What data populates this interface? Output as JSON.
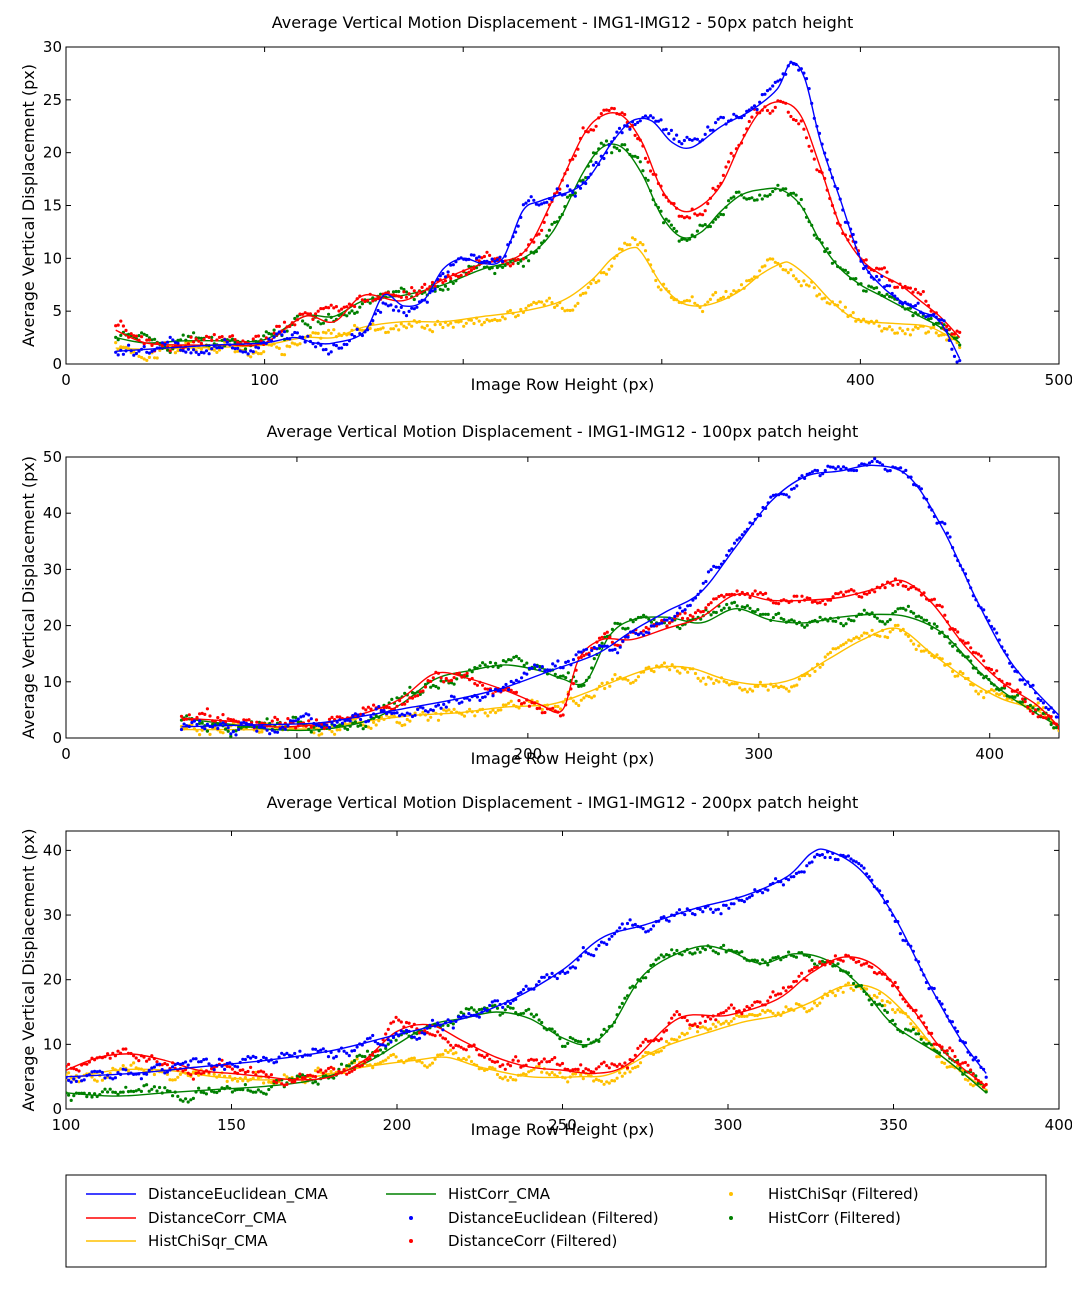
{
  "legend": {
    "placement": "bottom",
    "entries": [
      {
        "label": "DistanceEuclidean_CMA",
        "color": "#0000ff",
        "style": "line"
      },
      {
        "label": "DistanceCorr_CMA",
        "color": "#ff0000",
        "style": "line"
      },
      {
        "label": "HistChiSqr_CMA",
        "color": "#ffc000",
        "style": "line"
      },
      {
        "label": "HistCorr_CMA",
        "color": "#008000",
        "style": "line"
      },
      {
        "label": "DistanceEuclidean (Filtered)",
        "color": "#0000ff",
        "style": "dots"
      },
      {
        "label": "DistanceCorr (Filtered)",
        "color": "#ff0000",
        "style": "dots"
      },
      {
        "label": "HistChiSqr (Filtered)",
        "color": "#ffc000",
        "style": "dots"
      },
      {
        "label": "HistCorr (Filtered)",
        "color": "#008000",
        "style": "dots"
      }
    ]
  },
  "chart_data": [
    {
      "type": "line",
      "title": "Average Vertical Motion Displacement - IMG1-IMG12 - 50px patch height",
      "xlabel": "Image Row Height (px)",
      "ylabel": "Average Vertical Displacement (px)",
      "xlim": [
        0,
        500
      ],
      "ylim": [
        0,
        30
      ],
      "xticks": [
        0,
        100,
        200,
        300,
        400,
        500
      ],
      "yticks": [
        0,
        5,
        10,
        15,
        20,
        25,
        30
      ],
      "xticklabels": [
        "0",
        "100",
        "",
        "",
        "400",
        "500"
      ],
      "grid": false,
      "series": [
        {
          "key": "de",
          "color": "#0000ff",
          "x": [
            25,
            50,
            75,
            100,
            115,
            125,
            135,
            150,
            160,
            170,
            180,
            190,
            200,
            210,
            220,
            230,
            240,
            260,
            275,
            285,
            295,
            305,
            315,
            330,
            345,
            358,
            365,
            372,
            380,
            390,
            400,
            410,
            420,
            430,
            440,
            450
          ],
          "y": [
            1.2,
            1.5,
            1.8,
            2.0,
            2.5,
            2.0,
            2.0,
            3.0,
            6.5,
            5.5,
            6.0,
            9.0,
            10.0,
            9.5,
            10.0,
            14.5,
            15.5,
            17.0,
            21.0,
            23.0,
            23.0,
            21.0,
            20.5,
            22.5,
            24.0,
            26.0,
            28.5,
            27.0,
            21.0,
            15.5,
            10.0,
            7.5,
            6.0,
            5.0,
            4.0,
            0.5
          ]
        },
        {
          "key": "dc",
          "color": "#ff0000",
          "x": [
            25,
            40,
            60,
            80,
            100,
            120,
            135,
            150,
            170,
            190,
            210,
            230,
            245,
            260,
            270,
            280,
            290,
            300,
            310,
            320,
            330,
            340,
            350,
            360,
            370,
            380,
            390,
            400,
            410,
            420,
            430,
            440,
            450
          ],
          "y": [
            3.2,
            2.0,
            1.8,
            1.8,
            2.0,
            4.5,
            4.0,
            6.5,
            6.0,
            8.0,
            9.5,
            10.5,
            15.5,
            21.5,
            23.5,
            23.5,
            21.0,
            16.5,
            14.5,
            15.0,
            17.0,
            21.0,
            24.0,
            24.8,
            23.5,
            18.5,
            13.0,
            10.0,
            8.5,
            7.5,
            6.0,
            4.5,
            2.5
          ]
        },
        {
          "key": "hc",
          "color": "#008000",
          "x": [
            25,
            40,
            60,
            80,
            100,
            120,
            135,
            150,
            170,
            190,
            210,
            230,
            245,
            260,
            270,
            280,
            290,
            300,
            310,
            320,
            330,
            340,
            350,
            360,
            370,
            380,
            390,
            400,
            410,
            420,
            430,
            440,
            450
          ],
          "y": [
            2.5,
            2.0,
            2.2,
            2.2,
            2.3,
            4.5,
            4.5,
            6.0,
            6.5,
            7.5,
            9.0,
            10.0,
            12.5,
            18.0,
            20.5,
            20.5,
            18.0,
            14.0,
            12.0,
            12.5,
            14.5,
            16.0,
            16.5,
            16.5,
            15.0,
            11.5,
            9.0,
            7.5,
            6.5,
            5.5,
            4.5,
            3.5,
            2.0
          ]
        },
        {
          "key": "hs",
          "color": "#ffc000",
          "x": [
            25,
            40,
            60,
            80,
            100,
            120,
            135,
            150,
            170,
            190,
            210,
            230,
            250,
            265,
            275,
            285,
            290,
            300,
            310,
            320,
            330,
            340,
            350,
            360,
            365,
            375,
            385,
            395,
            405,
            420,
            435,
            450
          ],
          "y": [
            1.5,
            1.4,
            1.5,
            1.6,
            1.8,
            2.5,
            2.5,
            3.5,
            4.0,
            4.0,
            4.5,
            5.0,
            6.0,
            8.0,
            10.0,
            11.0,
            10.5,
            7.5,
            5.8,
            5.5,
            6.0,
            7.0,
            8.5,
            9.5,
            9.5,
            8.0,
            6.0,
            4.5,
            4.0,
            3.8,
            3.5,
            2.0
          ]
        }
      ]
    },
    {
      "type": "line",
      "title": "Average Vertical Motion Displacement - IMG1-IMG12 - 100px patch height",
      "xlabel": "Image Row Height (px)",
      "ylabel": "Average Vertical Displacement (px)",
      "xlim": [
        0,
        430
      ],
      "ylim": [
        0,
        50
      ],
      "xticks": [
        0,
        100,
        200,
        300,
        400
      ],
      "yticks": [
        0,
        10,
        20,
        30,
        40,
        50
      ],
      "xticklabels": [
        "0",
        "100",
        "200",
        "300",
        "400"
      ],
      "grid": false,
      "series": [
        {
          "key": "de",
          "color": "#0000ff",
          "x": [
            50,
            70,
            90,
            110,
            130,
            150,
            170,
            190,
            210,
            230,
            245,
            260,
            275,
            290,
            305,
            320,
            335,
            350,
            365,
            380,
            395,
            410,
            430
          ],
          "y": [
            2.0,
            2.2,
            2.4,
            2.7,
            4.0,
            5.5,
            7.0,
            9.0,
            12.0,
            15.0,
            19.0,
            22.5,
            26.0,
            34.0,
            42.0,
            46.5,
            47.5,
            48.5,
            46.5,
            37.0,
            24.0,
            13.0,
            4.0
          ]
        },
        {
          "key": "dc",
          "color": "#ff0000",
          "x": [
            50,
            70,
            90,
            110,
            130,
            145,
            160,
            175,
            190,
            205,
            215,
            222,
            232,
            245,
            260,
            275,
            290,
            305,
            320,
            335,
            350,
            362,
            375,
            390,
            405,
            420,
            430
          ],
          "y": [
            3.5,
            3.0,
            2.0,
            2.5,
            4.5,
            7.0,
            11.5,
            10.5,
            8.5,
            6.0,
            5.0,
            14.0,
            17.5,
            17.5,
            19.5,
            21.5,
            25.5,
            24.5,
            24.5,
            25.0,
            26.5,
            28.0,
            24.0,
            16.0,
            10.0,
            6.0,
            2.0
          ]
        },
        {
          "key": "hc",
          "color": "#008000",
          "x": [
            50,
            70,
            90,
            110,
            130,
            145,
            160,
            175,
            190,
            205,
            215,
            225,
            235,
            245,
            260,
            275,
            290,
            305,
            320,
            335,
            350,
            365,
            380,
            395,
            410,
            430
          ],
          "y": [
            3.5,
            2.5,
            1.5,
            1.5,
            3.0,
            6.0,
            10.5,
            12.0,
            13.0,
            12.0,
            10.5,
            10.0,
            18.0,
            21.0,
            21.5,
            20.5,
            23.0,
            21.0,
            20.5,
            21.5,
            22.0,
            21.5,
            18.5,
            12.0,
            7.0,
            2.0
          ]
        },
        {
          "key": "hs",
          "color": "#ffc000",
          "x": [
            50,
            70,
            90,
            110,
            130,
            150,
            170,
            190,
            210,
            225,
            240,
            255,
            270,
            285,
            300,
            315,
            330,
            345,
            360,
            375,
            390,
            405,
            420,
            430
          ],
          "y": [
            1.5,
            1.5,
            1.5,
            1.8,
            3.0,
            4.0,
            4.5,
            5.5,
            6.0,
            8.0,
            10.5,
            12.5,
            12.5,
            10.5,
            9.5,
            10.5,
            14.0,
            17.5,
            19.5,
            15.0,
            10.5,
            7.0,
            5.0,
            2.0
          ]
        }
      ]
    },
    {
      "type": "line",
      "title": "Average Vertical Motion Displacement - IMG1-IMG12 - 200px patch height",
      "xlabel": "Image Row Height (px)",
      "ylabel": "Average Vertical Displacement (px)",
      "xlim": [
        100,
        400
      ],
      "ylim": [
        0,
        43
      ],
      "xticks": [
        100,
        150,
        200,
        250,
        300,
        350,
        400
      ],
      "yticks": [
        0,
        10,
        20,
        30,
        40
      ],
      "xticklabels": [
        "100",
        "150",
        "200",
        "250",
        "300",
        "350",
        "400"
      ],
      "grid": false,
      "series": [
        {
          "key": "de",
          "color": "#0000ff",
          "x": [
            100,
            120,
            140,
            160,
            180,
            200,
            220,
            235,
            250,
            262,
            275,
            290,
            305,
            318,
            325,
            330,
            340,
            350,
            360,
            370,
            378
          ],
          "y": [
            5.0,
            5.5,
            6.5,
            7.5,
            9.0,
            11.5,
            14.0,
            17.0,
            21.5,
            26.5,
            28.5,
            31.0,
            33.0,
            36.0,
            39.5,
            40.0,
            37.0,
            30.0,
            20.0,
            11.0,
            5.5
          ]
        },
        {
          "key": "dc",
          "color": "#ff0000",
          "x": [
            100,
            110,
            120,
            130,
            140,
            150,
            160,
            170,
            180,
            190,
            200,
            210,
            220,
            230,
            240,
            250,
            260,
            270,
            285,
            300,
            315,
            325,
            335,
            345,
            355,
            365,
            378
          ],
          "y": [
            6.0,
            8.0,
            8.5,
            7.5,
            6.0,
            5.5,
            5.0,
            4.5,
            5.0,
            7.5,
            12.0,
            13.0,
            10.5,
            8.0,
            6.5,
            6.0,
            5.5,
            7.0,
            14.0,
            14.5,
            17.0,
            21.0,
            23.5,
            22.0,
            16.0,
            9.0,
            3.5
          ]
        },
        {
          "key": "hc",
          "color": "#008000",
          "x": [
            100,
            115,
            130,
            145,
            160,
            175,
            190,
            200,
            210,
            220,
            230,
            240,
            250,
            258,
            265,
            275,
            290,
            300,
            310,
            320,
            330,
            340,
            350,
            365,
            378
          ],
          "y": [
            2.5,
            2.0,
            2.5,
            3.0,
            3.5,
            4.5,
            7.0,
            10.0,
            13.0,
            14.0,
            15.0,
            14.0,
            11.0,
            10.0,
            13.0,
            21.0,
            25.0,
            24.5,
            22.5,
            24.0,
            23.0,
            19.0,
            13.0,
            8.0,
            2.5
          ]
        },
        {
          "key": "hs",
          "color": "#ffc000",
          "x": [
            100,
            115,
            130,
            145,
            160,
            175,
            190,
            205,
            215,
            225,
            240,
            255,
            265,
            280,
            295,
            305,
            315,
            325,
            335,
            345,
            355,
            365,
            378
          ],
          "y": [
            4.5,
            6.0,
            6.0,
            5.0,
            4.5,
            5.0,
            6.5,
            7.5,
            8.0,
            6.5,
            5.0,
            5.0,
            5.5,
            9.5,
            12.0,
            13.5,
            14.5,
            16.5,
            19.0,
            18.5,
            14.0,
            8.0,
            3.0
          ]
        }
      ]
    }
  ]
}
